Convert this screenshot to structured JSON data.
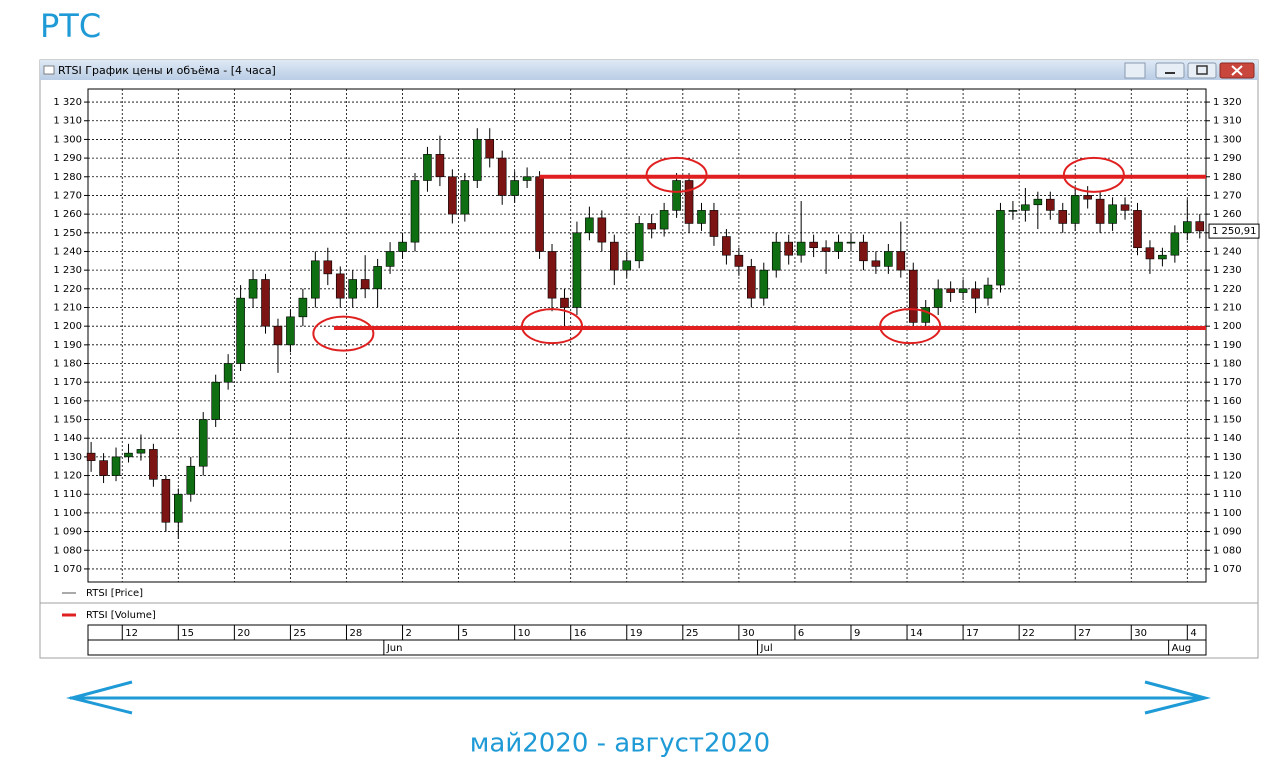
{
  "header": {
    "title": "РТС"
  },
  "window": {
    "title": "RTSI График цены и объёма - [4 часа]"
  },
  "chart_data": {
    "type": "candlestick",
    "x": [
      0,
      2,
      4,
      6,
      8,
      10,
      12,
      14,
      16,
      18,
      20,
      22,
      24,
      26,
      28,
      30,
      32,
      34,
      36,
      38,
      40,
      42,
      44,
      46,
      48,
      50,
      52,
      54,
      56,
      58,
      60,
      62,
      64,
      66,
      68,
      70,
      72,
      74,
      76,
      78,
      80,
      82,
      84,
      86,
      88,
      90,
      92,
      94,
      96,
      98,
      100,
      102,
      104,
      106,
      108,
      110,
      112,
      114,
      116,
      118,
      120,
      122,
      124,
      126,
      128,
      130,
      132,
      134,
      136,
      138,
      140,
      142,
      144,
      146,
      148,
      150,
      152,
      154,
      156,
      158,
      160,
      162,
      164,
      166,
      168,
      170,
      172,
      174,
      176,
      178
    ],
    "open": [
      1132,
      1128,
      1120,
      1130,
      1132,
      1134,
      1118,
      1095,
      1110,
      1125,
      1150,
      1170,
      1180,
      1215,
      1225,
      1200,
      1190,
      1205,
      1215,
      1235,
      1228,
      1215,
      1225,
      1220,
      1232,
      1240,
      1245,
      1278,
      1292,
      1280,
      1260,
      1278,
      1300,
      1290,
      1270,
      1278,
      1280,
      1240,
      1215,
      1210,
      1250,
      1258,
      1245,
      1230,
      1235,
      1255,
      1252,
      1262,
      1278,
      1255,
      1262,
      1248,
      1238,
      1232,
      1215,
      1230,
      1245,
      1238,
      1245,
      1242,
      1240,
      1245,
      1245,
      1235,
      1232,
      1240,
      1230,
      1202,
      1210,
      1220,
      1218,
      1220,
      1215,
      1222,
      1262,
      1262,
      1265,
      1268,
      1262,
      1255,
      1270,
      1268,
      1255,
      1265,
      1262,
      1242,
      1236,
      1238,
      1250,
      1256
    ],
    "high": [
      1138,
      1132,
      1135,
      1137,
      1142,
      1137,
      1120,
      1113,
      1130,
      1154,
      1174,
      1185,
      1222,
      1230,
      1228,
      1204,
      1209,
      1220,
      1240,
      1242,
      1232,
      1230,
      1238,
      1236,
      1245,
      1250,
      1282,
      1296,
      1302,
      1284,
      1282,
      1306,
      1306,
      1294,
      1283,
      1285,
      1283,
      1244,
      1220,
      1256,
      1264,
      1262,
      1249,
      1240,
      1259,
      1260,
      1266,
      1282,
      1282,
      1266,
      1266,
      1252,
      1242,
      1236,
      1234,
      1250,
      1249,
      1267,
      1249,
      1246,
      1249,
      1250,
      1249,
      1240,
      1244,
      1256,
      1234,
      1214,
      1225,
      1224,
      1225,
      1224,
      1226,
      1266,
      1267,
      1274,
      1272,
      1272,
      1266,
      1274,
      1275,
      1272,
      1269,
      1269,
      1266,
      1246,
      1242,
      1254,
      1268,
      1260
    ],
    "low": [
      1122,
      1116,
      1117,
      1127,
      1128,
      1114,
      1090,
      1086,
      1106,
      1120,
      1146,
      1166,
      1176,
      1210,
      1196,
      1175,
      1186,
      1200,
      1210,
      1222,
      1210,
      1210,
      1215,
      1210,
      1228,
      1236,
      1240,
      1272,
      1275,
      1255,
      1256,
      1274,
      1285,
      1265,
      1266,
      1274,
      1236,
      1208,
      1198,
      1206,
      1246,
      1240,
      1222,
      1226,
      1231,
      1247,
      1248,
      1258,
      1250,
      1251,
      1243,
      1233,
      1227,
      1210,
      1211,
      1226,
      1233,
      1234,
      1237,
      1228,
      1236,
      1240,
      1230,
      1228,
      1228,
      1226,
      1198,
      1198,
      1206,
      1213,
      1214,
      1207,
      1211,
      1218,
      1257,
      1256,
      1252,
      1257,
      1250,
      1251,
      1263,
      1250,
      1251,
      1257,
      1238,
      1228,
      1232,
      1234,
      1246,
      1247
    ],
    "close": [
      1128,
      1120,
      1130,
      1132,
      1134,
      1118,
      1095,
      1110,
      1125,
      1150,
      1170,
      1180,
      1215,
      1225,
      1200,
      1190,
      1205,
      1215,
      1235,
      1228,
      1215,
      1225,
      1220,
      1232,
      1240,
      1245,
      1278,
      1292,
      1280,
      1260,
      1278,
      1300,
      1290,
      1270,
      1278,
      1280,
      1240,
      1215,
      1210,
      1250,
      1258,
      1245,
      1230,
      1235,
      1255,
      1252,
      1262,
      1278,
      1255,
      1262,
      1248,
      1238,
      1232,
      1215,
      1230,
      1245,
      1238,
      1245,
      1242,
      1240,
      1245,
      1245,
      1235,
      1232,
      1240,
      1230,
      1202,
      1210,
      1220,
      1218,
      1220,
      1215,
      1222,
      1262,
      1262,
      1265,
      1268,
      1262,
      1255,
      1270,
      1268,
      1255,
      1265,
      1262,
      1242,
      1236,
      1238,
      1250,
      1256,
      1251
    ],
    "up_color": "#0f6e12",
    "down_color": "#7d1414",
    "xlim": [
      -0.5,
      179
    ],
    "ylim": [
      1063,
      1327
    ],
    "yticks": [
      {
        "value": 1070,
        "label": "1 070"
      },
      {
        "value": 1080,
        "label": "1 080"
      },
      {
        "value": 1090,
        "label": "1 090"
      },
      {
        "value": 1100,
        "label": "1 100"
      },
      {
        "value": 1110,
        "label": "1 110"
      },
      {
        "value": 1120,
        "label": "1 120"
      },
      {
        "value": 1130,
        "label": "1 130"
      },
      {
        "value": 1140,
        "label": "1 140"
      },
      {
        "value": 1150,
        "label": "1 150"
      },
      {
        "value": 1160,
        "label": "1 160"
      },
      {
        "value": 1170,
        "label": "1 170"
      },
      {
        "value": 1180,
        "label": "1 180"
      },
      {
        "value": 1190,
        "label": "1 190"
      },
      {
        "value": 1200,
        "label": "1 200"
      },
      {
        "value": 1210,
        "label": "1 210"
      },
      {
        "value": 1220,
        "label": "1 220"
      },
      {
        "value": 1230,
        "label": "1 230"
      },
      {
        "value": 1240,
        "label": "1 240"
      },
      {
        "value": 1250,
        "label": "1 250"
      },
      {
        "value": 1260,
        "label": "1 260"
      },
      {
        "value": 1270,
        "label": "1 270"
      },
      {
        "value": 1280,
        "label": "1 280"
      },
      {
        "value": 1290,
        "label": "1 290"
      },
      {
        "value": 1300,
        "label": "1 300"
      },
      {
        "value": 1310,
        "label": "1 310"
      },
      {
        "value": 1320,
        "label": "1 320"
      }
    ],
    "xticks": [
      {
        "value": 5,
        "label": "12"
      },
      {
        "value": 14,
        "label": "15"
      },
      {
        "value": 23,
        "label": "20"
      },
      {
        "value": 32,
        "label": "25"
      },
      {
        "value": 41,
        "label": "28"
      },
      {
        "value": 50,
        "label": "2"
      },
      {
        "value": 59,
        "label": "5"
      },
      {
        "value": 68,
        "label": "10"
      },
      {
        "value": 77,
        "label": "16"
      },
      {
        "value": 86,
        "label": "19"
      },
      {
        "value": 95,
        "label": "25"
      },
      {
        "value": 104,
        "label": "30"
      },
      {
        "value": 113,
        "label": "6"
      },
      {
        "value": 122,
        "label": "9"
      },
      {
        "value": 131,
        "label": "14"
      },
      {
        "value": 140,
        "label": "17"
      },
      {
        "value": 149,
        "label": "22"
      },
      {
        "value": 158,
        "label": "27"
      },
      {
        "value": 167,
        "label": "30"
      },
      {
        "value": 176,
        "label": "4"
      }
    ],
    "month_ticks": [
      {
        "value": 47,
        "label": "Jun"
      },
      {
        "value": 107,
        "label": "Jul"
      },
      {
        "value": 173,
        "label": "Aug"
      }
    ],
    "grid": true,
    "last_price": 1250.91,
    "last_price_label": "1 250,91",
    "legend": [
      {
        "name": "RTSI [Price]",
        "color": "#555555"
      },
      {
        "name": "RTSI [Volume]",
        "color": "#e02020"
      }
    ],
    "levels": [
      {
        "value": 1280,
        "from": 72,
        "color": "#e02020"
      },
      {
        "value": 1199,
        "from": 39,
        "color": "#e02020"
      }
    ],
    "highlights": [
      {
        "x": 94,
        "y": 1281
      },
      {
        "x": 161,
        "y": 1281
      },
      {
        "x": 40.5,
        "y": 1196
      },
      {
        "x": 74,
        "y": 1200
      },
      {
        "x": 131.5,
        "y": 1200
      }
    ]
  },
  "footer": {
    "period": "май2020 - август2020"
  }
}
